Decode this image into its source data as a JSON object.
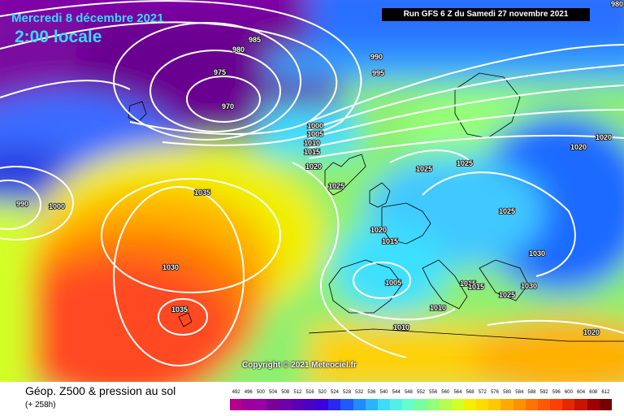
{
  "header": {
    "date": "Mercredi 8 décembre 2021",
    "time": "2:00 locale",
    "run": "Run GFS 6 Z du Samedi 27 novembre 2021"
  },
  "footer": {
    "title": "Géop. Z500 & pression au sol",
    "subtitle": "(+ 258h)",
    "copyright": "Copyright © 2021 Meteociel.fr"
  },
  "legend": {
    "values": [
      "492",
      "496",
      "500",
      "504",
      "508",
      "512",
      "516",
      "520",
      "524",
      "528",
      "532",
      "536",
      "540",
      "544",
      "548",
      "552",
      "556",
      "560",
      "564",
      "568",
      "572",
      "576",
      "580",
      "584",
      "588",
      "592",
      "596",
      "600",
      "604",
      "608",
      "612"
    ],
    "colors": [
      "#b4008c",
      "#a0009a",
      "#9a00a8",
      "#7a0098",
      "#6e00aa",
      "#5a00b4",
      "#4b00c8",
      "#3c00dc",
      "#2a28f0",
      "#1e5aff",
      "#1e8cff",
      "#28b4ff",
      "#3cdcff",
      "#50f0e6",
      "#64ffc8",
      "#78ffa0",
      "#96ff78",
      "#b4ff50",
      "#d2ff28",
      "#f0f000",
      "#ffdc00",
      "#ffc800",
      "#ffaa00",
      "#ff9100",
      "#ff7300",
      "#ff5a00",
      "#ff4000",
      "#e62800",
      "#c81400",
      "#a00000",
      "#780000"
    ]
  },
  "isobars": [
    {
      "text": "985"
    },
    {
      "text": "980"
    },
    {
      "text": "975"
    },
    {
      "text": "970"
    },
    {
      "text": "990"
    },
    {
      "text": "995"
    },
    {
      "text": "1000"
    },
    {
      "text": "1005"
    },
    {
      "text": "1010"
    },
    {
      "text": "1015"
    },
    {
      "text": "1020"
    },
    {
      "text": "1025"
    },
    {
      "text": "1025"
    },
    {
      "text": "1025"
    },
    {
      "text": "1020"
    },
    {
      "text": "1020"
    },
    {
      "text": "1025"
    },
    {
      "text": "1035"
    },
    {
      "text": "1030"
    },
    {
      "text": "1035"
    },
    {
      "text": "1020"
    },
    {
      "text": "1015"
    },
    {
      "text": "1005"
    },
    {
      "text": "1010"
    },
    {
      "text": "1010"
    },
    {
      "text": "1015"
    },
    {
      "text": "1015"
    },
    {
      "text": "1025"
    },
    {
      "text": "1030"
    },
    {
      "text": "1030"
    },
    {
      "text": "1020"
    },
    {
      "text": "990"
    },
    {
      "text": "1000"
    },
    {
      "text": "980"
    }
  ]
}
